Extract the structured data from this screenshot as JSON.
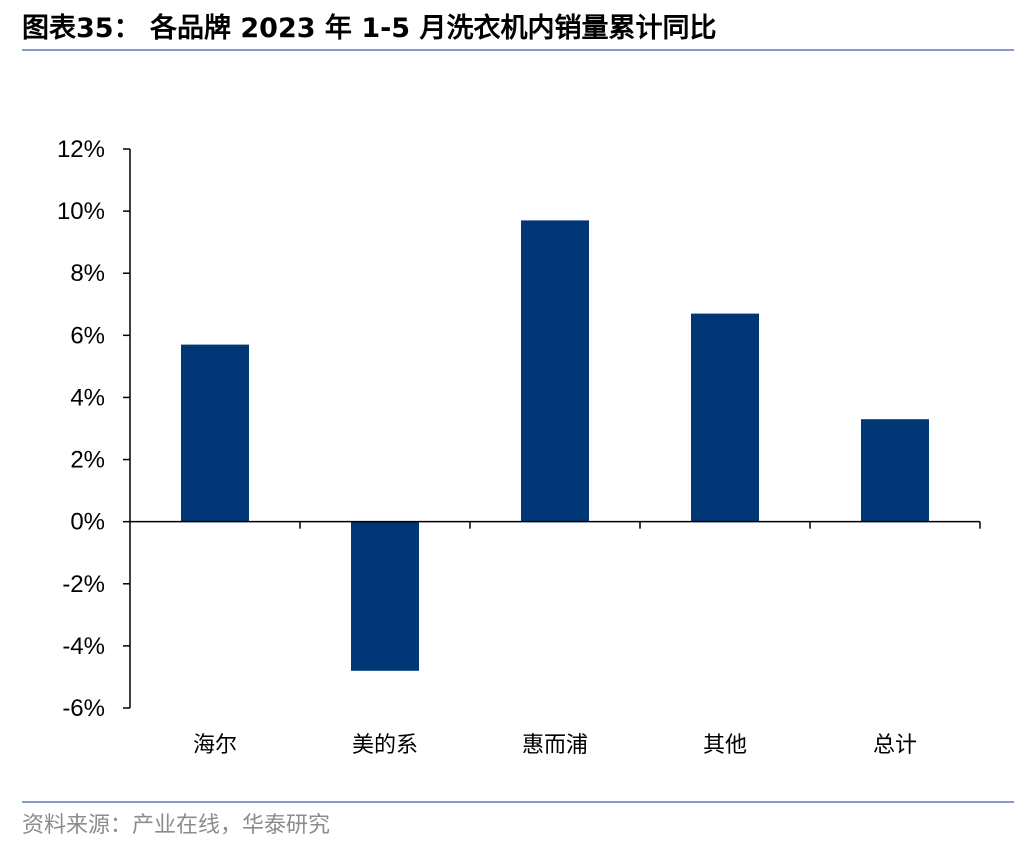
{
  "figure_title": "图表35： 各品牌 2023 年 1-5 月洗衣机内销量累计同比",
  "source_note": "资料来源：产业在线，华泰研究",
  "colors": {
    "bar": "#003676",
    "axis": "#000000",
    "rule": "#7f9fc5",
    "source_text": "#8c8c8c"
  },
  "chart_data": {
    "type": "bar",
    "title": "",
    "xlabel": "",
    "ylabel": "",
    "categories": [
      "海尔",
      "美的系",
      "惠而浦",
      "其他",
      "总计"
    ],
    "values": [
      5.7,
      -4.8,
      9.7,
      6.7,
      3.3
    ],
    "unit": "%",
    "ylim": [
      -6,
      12
    ],
    "yticks": [
      12,
      10,
      8,
      6,
      4,
      2,
      0,
      -2,
      -4,
      -6
    ],
    "ytick_labels": [
      "12%",
      "10%",
      "8%",
      "6%",
      "4%",
      "2%",
      "0%",
      "-2%",
      "-4%",
      "-6%"
    ],
    "grid": false,
    "legend": "none"
  }
}
